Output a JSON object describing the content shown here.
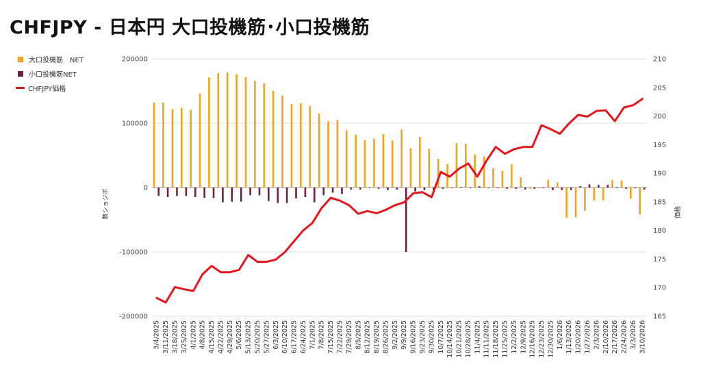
{
  "title": "CHFJPY - 日本円 大口投機筋･小口投機筋",
  "colors": {
    "large": "#f5a31a",
    "small": "#6b2146",
    "price": "#e8141b",
    "grid": "#e2e2e2"
  },
  "chart_data": {
    "type": "bar+line",
    "ylabel_left": "数ショジポ",
    "ylabel_right": "価格",
    "y_left_ticks": [
      "200000",
      "100000",
      "0",
      "-100000",
      "-200000"
    ],
    "y_left_range": [
      -200000,
      200000
    ],
    "y_right_ticks": [
      "210",
      "205",
      "200",
      "195",
      "190",
      "185",
      "180",
      "175",
      "170",
      "165"
    ],
    "y_right_range": [
      165,
      210
    ],
    "legend_position": "top-left",
    "categories": [
      "3/4/2025",
      "3/11/2025",
      "3/18/2025",
      "3/25/2025",
      "4/1/2025",
      "4/8/2025",
      "4/15/2025",
      "4/22/2025",
      "4/29/2025",
      "5/6/2025",
      "5/13/2025",
      "5/20/2025",
      "5/27/2025",
      "6/3/2025",
      "6/10/2025",
      "6/17/2025",
      "6/24/2025",
      "7/1/2025",
      "7/8/2025",
      "7/15/2025",
      "7/22/2025",
      "7/29/2025",
      "8/5/2025",
      "8/12/2025",
      "8/19/2025",
      "8/26/2025",
      "9/2/2025",
      "9/9/2025",
      "9/16/2025",
      "9/23/2025",
      "9/30/2025",
      "10/7/2025",
      "10/14/2025",
      "10/21/2025",
      "10/28/2025",
      "11/4/2025",
      "11/11/2025",
      "11/18/2025",
      "11/25/2025",
      "12/2/2025",
      "12/9/2025",
      "12/16/2025",
      "12/23/2025",
      "12/30/2025",
      "1/6/2026",
      "1/13/2026",
      "1/20/2026",
      "1/27/2026",
      "2/3/2026",
      "2/10/2026",
      "2/17/2026",
      "2/24/2026",
      "3/3/2026",
      "3/10/2026"
    ],
    "series": [
      {
        "name": "大口投機筋　NET",
        "type": "bar",
        "values": [
          132000,
          132000,
          122000,
          124000,
          121000,
          146000,
          171000,
          178000,
          179000,
          176000,
          172000,
          166000,
          162000,
          150000,
          143000,
          130000,
          131000,
          127000,
          115000,
          103000,
          105000,
          89000,
          82000,
          74000,
          76000,
          83000,
          73000,
          90000,
          61000,
          79000,
          60000,
          45000,
          36000,
          69000,
          68000,
          51000,
          48000,
          30000,
          26000,
          36000,
          16000,
          -2000,
          -1000,
          12000,
          8000,
          -47000,
          -46000,
          -36000,
          -20000,
          -20000,
          12000,
          11000,
          -17000,
          -42000
        ]
      },
      {
        "name": "小口投機筋NET",
        "type": "bar",
        "values": [
          -13000,
          -15000,
          -13000,
          -13000,
          -15000,
          -16000,
          -16000,
          -23000,
          -22000,
          -22000,
          -12000,
          -12000,
          -21000,
          -24000,
          -24000,
          -17000,
          -15000,
          -23000,
          -12000,
          -8000,
          -10000,
          -3000,
          -3000,
          -1000,
          -2000,
          -4000,
          -3000,
          -100000,
          -6000,
          -4000,
          -4000,
          -2000,
          -1000,
          1000,
          -1000,
          2000,
          -1000,
          -1000,
          -2000,
          -2000,
          -3000,
          -2000,
          -1000,
          -4000,
          -4000,
          -4000,
          2000,
          5000,
          4000,
          4000,
          1000,
          -2000,
          -1000,
          -3000
        ]
      },
      {
        "name": "CHFJPY価格",
        "type": "line",
        "values": [
          168.2,
          167.4,
          170.1,
          169.7,
          169.4,
          172.3,
          173.8,
          172.7,
          172.7,
          173.1,
          175.7,
          174.5,
          174.5,
          174.9,
          176.2,
          178.1,
          180.0,
          181.3,
          183.9,
          185.7,
          185.2,
          184.4,
          182.9,
          183.4,
          183.0,
          183.6,
          184.4,
          184.9,
          186.5,
          186.7,
          185.8,
          190.2,
          189.4,
          190.8,
          191.7,
          189.4,
          192.2,
          194.6,
          193.4,
          194.2,
          194.6,
          194.6,
          198.4,
          197.7,
          196.9,
          198.7,
          200.2,
          199.9,
          200.9,
          201.0,
          199.1,
          201.5,
          201.9,
          203.0
        ]
      }
    ]
  }
}
